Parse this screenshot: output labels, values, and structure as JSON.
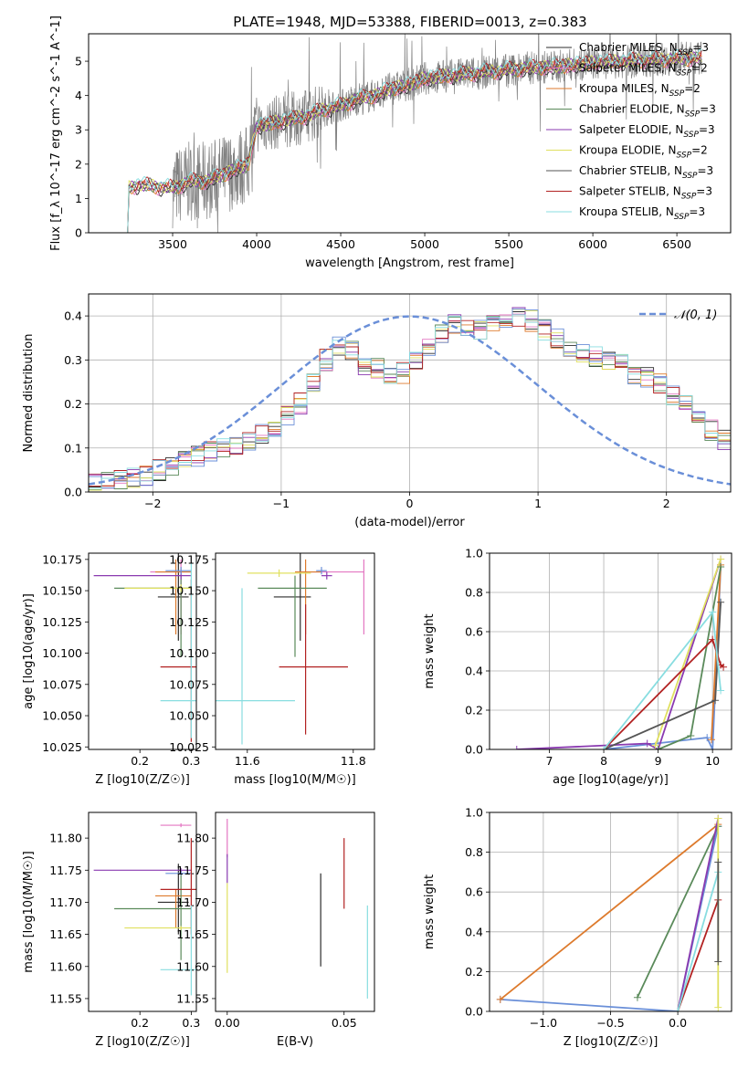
{
  "title": "PLATE=1948, MJD=53388, FIBERID=0013, z=0.383",
  "colors": {
    "Chabrier MILES": "#2c2c2c",
    "Salpeter MILES": "#e377c2",
    "Kroupa MILES": "#dd7a2c",
    "Chabrier ELODIE": "#5a8a5a",
    "Salpeter ELODIE": "#8a3ab0",
    "Kroupa ELODIE": "#e0e060",
    "Chabrier STELIB": "#555555",
    "Salpeter STELIB": "#b22222",
    "Kroupa STELIB": "#88dde0",
    "gauss": "#6a8fd8",
    "grid": "#b0b0b0"
  },
  "chart_data": [
    {
      "type": "line",
      "xlabel": "wavelength [Angstrom, rest frame]",
      "ylabel": "Flux [f_λ 10^-17 erg cm^-2 s^-1 A^-1]",
      "xlim": [
        3000,
        6820
      ],
      "ylim": [
        0,
        5.8
      ],
      "xticks": [
        "3500",
        "4000",
        "4500",
        "5000",
        "5500",
        "6000",
        "6500"
      ],
      "yticks": [
        "0",
        "1",
        "2",
        "3",
        "4",
        "5"
      ],
      "legend_position": "right",
      "legend": [
        {
          "label": "Chabrier MILES, N",
          "sub": "SSP",
          "suffix": "=3",
          "color": "#2c2c2c"
        },
        {
          "label": "Salpeter MILES, N",
          "sub": "SSP",
          "suffix": "=2",
          "color": "#e377c2"
        },
        {
          "label": "Kroupa MILES, N",
          "sub": "SSP",
          "suffix": "=2",
          "color": "#dd7a2c"
        },
        {
          "label": "Chabrier ELODIE, N",
          "sub": "SSP",
          "suffix": "=3",
          "color": "#5a8a5a"
        },
        {
          "label": "Salpeter ELODIE, N",
          "sub": "SSP",
          "suffix": "=3",
          "color": "#8a3ab0"
        },
        {
          "label": "Kroupa ELODIE, N",
          "sub": "SSP",
          "suffix": "=2",
          "color": "#e0e060"
        },
        {
          "label": "Chabrier STELIB, N",
          "sub": "SSP",
          "suffix": "=3",
          "color": "#555555"
        },
        {
          "label": "Salpeter STELIB, N",
          "sub": "SSP",
          "suffix": "=3",
          "color": "#b22222"
        },
        {
          "label": "Kroupa STELIB, N",
          "sub": "SSP",
          "suffix": "=3",
          "color": "#88dde0"
        }
      ],
      "model_continuum": {
        "x": [
          3200,
          3240,
          3300,
          3400,
          3500,
          3600,
          3700,
          3800,
          3900,
          3950,
          4000,
          4100,
          4200,
          4300,
          4400,
          4500,
          4600,
          4700,
          4800,
          4900,
          5000,
          5200,
          5400,
          5600,
          5800,
          6000,
          6200,
          6400,
          6650
        ],
        "y": [
          0,
          1.3,
          1.4,
          1.35,
          1.3,
          1.5,
          1.5,
          1.7,
          1.9,
          2.0,
          3.1,
          3.2,
          3.3,
          3.4,
          3.6,
          3.7,
          3.9,
          4.0,
          4.2,
          4.3,
          4.5,
          4.6,
          4.7,
          4.8,
          4.85,
          4.95,
          5.0,
          5.05,
          5.1
        ]
      },
      "data_range": [
        3500,
        6650
      ]
    },
    {
      "type": "histogram",
      "xlabel": "(data-model)/error",
      "ylabel": "Normed distribution",
      "xlim": [
        -2.5,
        2.5
      ],
      "ylim": [
        0,
        0.45
      ],
      "xticks": [
        "−2",
        "−1",
        "0",
        "1",
        "2"
      ],
      "yticks": [
        "0.0",
        "0.1",
        "0.2",
        "0.3",
        "0.4"
      ],
      "legend": {
        "label": "𝒩(0, 1)"
      },
      "bin_width": 0.1,
      "approx_counts": [
        0.02,
        0.025,
        0.03,
        0.035,
        0.04,
        0.05,
        0.06,
        0.07,
        0.08,
        0.09,
        0.1,
        0.11,
        0.12,
        0.13,
        0.15,
        0.17,
        0.2,
        0.25,
        0.3,
        0.33,
        0.32,
        0.29,
        0.28,
        0.26,
        0.27,
        0.3,
        0.33,
        0.36,
        0.38,
        0.38,
        0.37,
        0.38,
        0.39,
        0.4,
        0.39,
        0.37,
        0.35,
        0.33,
        0.32,
        0.31,
        0.3,
        0.29,
        0.27,
        0.26,
        0.25,
        0.22,
        0.2,
        0.16,
        0.14,
        0.12
      ]
    },
    {
      "type": "errorbar",
      "xlabel": "Z [log10(Z/Z☉)]",
      "ylabel": "age [log10(age/yr)]",
      "xlim": [
        0.1,
        0.31
      ],
      "ylim": [
        10.023,
        10.18
      ],
      "xticks": [
        "0.2",
        "0.3"
      ],
      "yticks": [
        "10.025",
        "10.050",
        "10.075",
        "10.100",
        "10.125",
        "10.150",
        "10.175"
      ],
      "points": [
        {
          "x": 0.275,
          "y": 10.145,
          "xerr": [
            0.04,
            0.02
          ],
          "yerr": [
            0.035,
            0.035
          ],
          "c": "#2c2c2c"
        },
        {
          "x": 0.28,
          "y": 10.165,
          "xerr": [
            0.06,
            0.02
          ],
          "yerr": [
            0.05,
            0.01
          ],
          "c": "#e377c2"
        },
        {
          "x": 0.27,
          "y": 10.165,
          "xerr": [
            0.04,
            0.03
          ],
          "yerr": [
            0.05,
            0.01
          ],
          "c": "#dd7a2c"
        },
        {
          "x": 0.28,
          "y": 10.152,
          "xerr": [
            0.13,
            0.02
          ],
          "yerr": [
            0.055,
            0.01
          ],
          "c": "#5a8a5a"
        },
        {
          "x": 0.28,
          "y": 10.162,
          "xerr": [
            0.17,
            0.02
          ],
          "yerr": [
            0.003,
            0.003
          ],
          "c": "#8a3ab0"
        },
        {
          "x": 0.28,
          "y": 10.152,
          "xerr": [
            0.11,
            0.02
          ],
          "yerr": [
            0.003,
            0.003
          ],
          "c": "#e0e060"
        },
        {
          "x": 0.28,
          "y": 10.166,
          "xerr": [
            0.03,
            0.02
          ],
          "yerr": [
            0.003,
            0.003
          ],
          "c": "#6a8fd8"
        },
        {
          "x": 0.3,
          "y": 10.089,
          "xerr": [
            0.06,
            0.01
          ],
          "yerr": [
            0.06,
            0.07
          ],
          "c": "#b22222"
        },
        {
          "x": 0.3,
          "y": 10.062,
          "xerr": [
            0.06,
            0.01
          ],
          "yerr": [
            0.03,
            0.11
          ],
          "c": "#88dde0"
        }
      ]
    },
    {
      "type": "errorbar",
      "xlabel": "mass [log10(M/M☉)]",
      "ylabel": "",
      "xlim": [
        11.54,
        11.84
      ],
      "ylim": [
        10.023,
        10.18
      ],
      "xticks": [
        "11.6",
        "11.8"
      ],
      "yticks": [
        "10.025",
        "10.050",
        "10.075",
        "10.100",
        "10.125",
        "10.150",
        "10.175"
      ],
      "points": [
        {
          "x": 11.7,
          "y": 10.145,
          "xerr": [
            0.05,
            0.02
          ],
          "yerr": [
            0.035,
            0.035
          ],
          "c": "#2c2c2c"
        },
        {
          "x": 11.82,
          "y": 10.165,
          "xerr": [
            0.1,
            0.0
          ],
          "yerr": [
            0.05,
            0.01
          ],
          "c": "#e377c2"
        },
        {
          "x": 11.71,
          "y": 10.165,
          "xerr": [
            0.02,
            0.03
          ],
          "yerr": [
            0.05,
            0.01
          ],
          "c": "#dd7a2c"
        },
        {
          "x": 11.69,
          "y": 10.152,
          "xerr": [
            0.07,
            0.06
          ],
          "yerr": [
            0.055,
            0.01
          ],
          "c": "#5a8a5a"
        },
        {
          "x": 11.75,
          "y": 10.162,
          "xerr": [
            0.01,
            0.01
          ],
          "yerr": [
            0.003,
            0.003
          ],
          "c": "#8a3ab0"
        },
        {
          "x": 11.66,
          "y": 10.164,
          "xerr": [
            0.06,
            0.06
          ],
          "yerr": [
            0.003,
            0.003
          ],
          "c": "#e0e060"
        },
        {
          "x": 11.74,
          "y": 10.166,
          "xerr": [
            0.01,
            0.01
          ],
          "yerr": [
            0.003,
            0.003
          ],
          "c": "#6a8fd8"
        },
        {
          "x": 11.71,
          "y": 10.089,
          "xerr": [
            0.05,
            0.08
          ],
          "yerr": [
            0.054,
            0.05
          ],
          "c": "#b22222"
        },
        {
          "x": 11.59,
          "y": 10.062,
          "xerr": [
            0.05,
            0.1
          ],
          "yerr": [
            0.035,
            0.09
          ],
          "c": "#88dde0"
        }
      ]
    },
    {
      "type": "line",
      "xlabel": "age [log10(age/yr)]",
      "ylabel": "mass weight",
      "xlim": [
        5.9,
        10.35
      ],
      "ylim": [
        0,
        1
      ],
      "xticks": [
        "7",
        "8",
        "9",
        "10"
      ],
      "yticks": [
        "0.0",
        "0.2",
        "0.4",
        "0.6",
        "0.8",
        "1.0"
      ],
      "series": [
        {
          "c": "#6a8fd8",
          "x": [
            8.0,
            9.9,
            10.0,
            10.15
          ],
          "y": [
            0.0,
            0.06,
            0.0,
            0.93
          ]
        },
        {
          "c": "#8a3ab0",
          "x": [
            6.4,
            8.8,
            9.0,
            10.15
          ],
          "y": [
            0.0,
            0.03,
            0.0,
            0.97
          ]
        },
        {
          "c": "#dd7a2c",
          "x": [
            9.98,
            10.15
          ],
          "y": [
            0.05,
            0.94
          ]
        },
        {
          "c": "#e0e060",
          "x": [
            8.95,
            10.15
          ],
          "y": [
            0.02,
            0.97
          ]
        },
        {
          "c": "#5a8a5a",
          "x": [
            9.0,
            9.6,
            10.15
          ],
          "y": [
            0.0,
            0.07,
            0.93
          ]
        },
        {
          "c": "#555555",
          "x": [
            8.0,
            10.05,
            10.15
          ],
          "y": [
            0.0,
            0.25,
            0.75
          ]
        },
        {
          "c": "#b22222",
          "x": [
            8.0,
            10.0,
            10.15,
            10.2
          ],
          "y": [
            0.0,
            0.56,
            0.43,
            0.42
          ]
        },
        {
          "c": "#88dde0",
          "x": [
            8.0,
            10.0,
            10.15
          ],
          "y": [
            0.0,
            0.7,
            0.3
          ]
        }
      ]
    },
    {
      "type": "errorbar",
      "xlabel": "Z [log10(Z/Z☉)]",
      "ylabel": "mass [log10(M/M☉)]",
      "xlim": [
        0.1,
        0.31
      ],
      "ylim": [
        11.53,
        11.84
      ],
      "xticks": [
        "0.2",
        "0.3"
      ],
      "yticks": [
        "11.55",
        "11.60",
        "11.65",
        "11.70",
        "11.75",
        "11.80"
      ],
      "points": [
        {
          "x": 0.275,
          "y": 11.7,
          "xerr": [
            0.04,
            0.02
          ],
          "yerr": [
            0.05,
            0.06
          ],
          "c": "#2c2c2c"
        },
        {
          "x": 0.28,
          "y": 11.82,
          "xerr": [
            0.04,
            0.02
          ],
          "yerr": [
            0.003,
            0.003
          ],
          "c": "#e377c2"
        },
        {
          "x": 0.27,
          "y": 11.71,
          "xerr": [
            0.04,
            0.03
          ],
          "yerr": [
            0.05,
            0.01
          ],
          "c": "#dd7a2c"
        },
        {
          "x": 0.28,
          "y": 11.69,
          "xerr": [
            0.13,
            0.02
          ],
          "yerr": [
            0.08,
            0.06
          ],
          "c": "#5a8a5a"
        },
        {
          "x": 0.28,
          "y": 11.75,
          "xerr": [
            0.17,
            0.02
          ],
          "yerr": [
            0.003,
            0.003
          ],
          "c": "#8a3ab0"
        },
        {
          "x": 0.28,
          "y": 11.66,
          "xerr": [
            0.11,
            0.02
          ],
          "yerr": [
            0.003,
            0.003
          ],
          "c": "#e0e060"
        },
        {
          "x": 0.28,
          "y": 11.745,
          "xerr": [
            0.03,
            0.02
          ],
          "yerr": [
            0.003,
            0.003
          ],
          "c": "#6a8fd8"
        },
        {
          "x": 0.3,
          "y": 11.72,
          "xerr": [
            0.06,
            0.01
          ],
          "yerr": [
            0.07,
            0.08
          ],
          "c": "#b22222"
        },
        {
          "x": 0.3,
          "y": 11.595,
          "xerr": [
            0.06,
            0.01
          ],
          "yerr": [
            0.04,
            0.1
          ],
          "c": "#88dde0"
        }
      ]
    },
    {
      "type": "errorbar",
      "xlabel": "E(B-V)",
      "ylabel": "",
      "xlim": [
        -0.005,
        0.063
      ],
      "ylim": [
        11.53,
        11.84
      ],
      "xticks": [
        "0.00",
        "0.05"
      ],
      "yticks": [
        "11.55",
        "11.60",
        "11.65",
        "11.70",
        "11.75",
        "11.80"
      ],
      "points": [
        {
          "x": 0.04,
          "y": 11.67,
          "xerr": [
            0,
            0
          ],
          "yerr": [
            0.07,
            0.075
          ],
          "c": "#2c2c2c"
        },
        {
          "x": 0.05,
          "y": 11.74,
          "xerr": [
            0,
            0
          ],
          "yerr": [
            0.05,
            0.06
          ],
          "c": "#b22222"
        },
        {
          "x": 0.06,
          "y": 11.62,
          "xerr": [
            0,
            0
          ],
          "yerr": [
            0.07,
            0.075
          ],
          "c": "#88dde0"
        },
        {
          "x": 0.0,
          "y": 11.8,
          "xerr": [
            0,
            0
          ],
          "yerr": [
            0.03,
            0.03
          ],
          "c": "#e377c2"
        },
        {
          "x": 0.0,
          "y": 11.75,
          "xerr": [
            0,
            0
          ],
          "yerr": [
            0.02,
            0.025
          ],
          "c": "#8a3ab0"
        },
        {
          "x": 0.0,
          "y": 11.66,
          "xerr": [
            0,
            0
          ],
          "yerr": [
            0.07,
            0.07
          ],
          "c": "#e0e060"
        }
      ]
    },
    {
      "type": "line",
      "xlabel": "Z [log10(Z/Z☉)]",
      "ylabel": "mass weight",
      "xlim": [
        -1.4,
        0.4
      ],
      "ylim": [
        0,
        1
      ],
      "xticks": [
        "−1.0",
        "−0.5",
        "0.0"
      ],
      "yticks": [
        "0.0",
        "0.2",
        "0.4",
        "0.6",
        "0.8",
        "1.0"
      ],
      "series": [
        {
          "c": "#6a8fd8",
          "x": [
            -1.32,
            0.0,
            0.3
          ],
          "y": [
            0.06,
            0.0,
            0.93
          ]
        },
        {
          "c": "#dd7a2c",
          "x": [
            -1.32,
            0.3
          ],
          "y": [
            0.06,
            0.94
          ]
        },
        {
          "c": "#5a8a5a",
          "x": [
            -0.3,
            0.3
          ],
          "y": [
            0.07,
            0.93
          ]
        },
        {
          "c": "#8a3ab0",
          "x": [
            0.0,
            0.3
          ],
          "y": [
            0.0,
            0.97
          ]
        },
        {
          "c": "#b22222",
          "x": [
            0.0,
            0.3
          ],
          "y": [
            0.0,
            0.56
          ]
        },
        {
          "c": "#88dde0",
          "x": [
            0.0,
            0.3
          ],
          "y": [
            0.0,
            0.7
          ]
        },
        {
          "c": "#e0e060",
          "x": [
            0.3,
            0.3
          ],
          "y": [
            0.02,
            0.97
          ]
        },
        {
          "c": "#555555",
          "x": [
            0.3,
            0.3
          ],
          "y": [
            0.25,
            0.75
          ]
        }
      ]
    }
  ]
}
